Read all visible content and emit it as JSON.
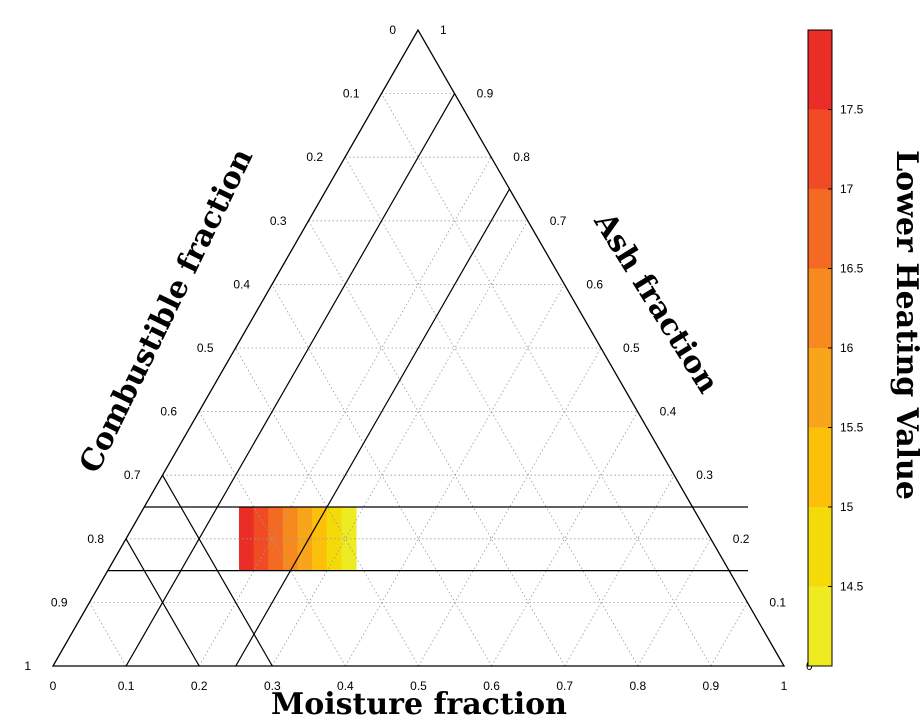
{
  "chart_data": {
    "type": "ternary",
    "axes": {
      "moisture": {
        "label": "Moisture fraction",
        "ticks": [
          "0",
          "0.1",
          "0.2",
          "0.3",
          "0.4",
          "0.5",
          "0.6",
          "0.7",
          "0.8",
          "0.9",
          "1"
        ]
      },
      "combustible": {
        "label": "Combustible fraction",
        "ticks": [
          "0",
          "0.1",
          "0.2",
          "0.3",
          "0.4",
          "0.5",
          "0.6",
          "0.7",
          "0.8",
          "0.9",
          "1"
        ]
      },
      "ash": {
        "label": "Ash fraction",
        "ticks": [
          "0",
          "0.1",
          "0.2",
          "0.3",
          "0.4",
          "0.5",
          "0.6",
          "0.7",
          "0.8",
          "0.9",
          "1"
        ]
      }
    },
    "grid": true,
    "grid_step": 0.1,
    "constraint_lines": {
      "ash": [
        0.15,
        0.25
      ],
      "moisture_upper": [
        0.7,
        0.8
      ],
      "moisture_lower": [
        0.1,
        0.25
      ]
    },
    "region": {
      "ash_range": [
        0.15,
        0.25
      ],
      "moisture_range": [
        0.18,
        0.34
      ],
      "value_range": [
        14.0,
        18.0
      ]
    },
    "colorbar": {
      "title": "Lower Heating Value",
      "range": [
        14.0,
        18.0
      ],
      "ticks": [
        "14.5",
        "15",
        "15.5",
        "16",
        "16.5",
        "17",
        "17.5"
      ],
      "tick_values": [
        14.5,
        15,
        15.5,
        16,
        16.5,
        17,
        17.5
      ],
      "levels": [
        14.0,
        14.5,
        15.0,
        15.5,
        16.0,
        16.5,
        17.0,
        17.5,
        18.0
      ],
      "colors": [
        "#eeeb22",
        "#f5da09",
        "#fcc00b",
        "#f9a51c",
        "#f78a1e",
        "#f56a22",
        "#f04b25",
        "#ea2d27"
      ]
    }
  }
}
